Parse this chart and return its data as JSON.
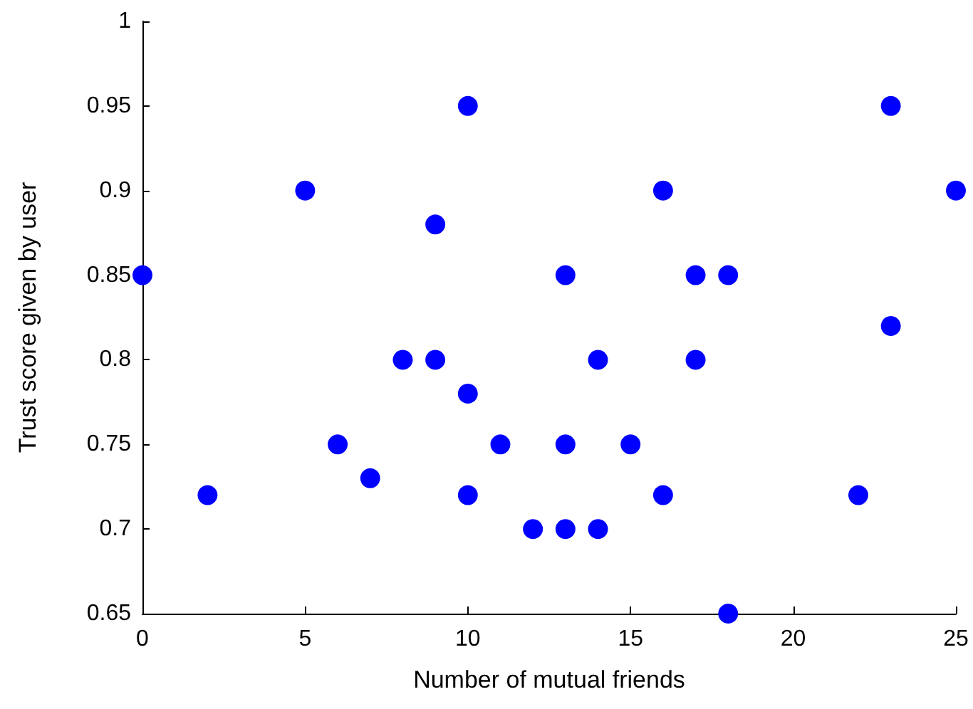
{
  "chart_data": {
    "type": "scatter",
    "xlabel": "Number of mutual friends",
    "ylabel": "Trust score given by user",
    "x": [
      0,
      2,
      5,
      6,
      7,
      8,
      9,
      9,
      10,
      10,
      10,
      11,
      12,
      13,
      13,
      13,
      14,
      14,
      15,
      16,
      16,
      17,
      17,
      18,
      18,
      22,
      23,
      23,
      25
    ],
    "values": [
      0.85,
      0.72,
      0.9,
      0.75,
      0.73,
      0.8,
      0.88,
      0.8,
      0.95,
      0.78,
      0.72,
      0.75,
      0.7,
      0.85,
      0.75,
      0.7,
      0.8,
      0.7,
      0.75,
      0.9,
      0.72,
      0.85,
      0.8,
      0.85,
      0.65,
      0.72,
      0.95,
      0.82,
      0.9
    ],
    "color": "#0000ff",
    "marker": "circle",
    "grid": false,
    "xlim": [
      0,
      25
    ],
    "xticks": [
      0,
      5,
      10,
      15,
      20,
      25
    ],
    "ylim": [
      0.65,
      1
    ],
    "yticks": [
      0.65,
      0.7,
      0.75,
      0.8,
      0.85,
      0.9,
      0.95,
      1
    ]
  }
}
